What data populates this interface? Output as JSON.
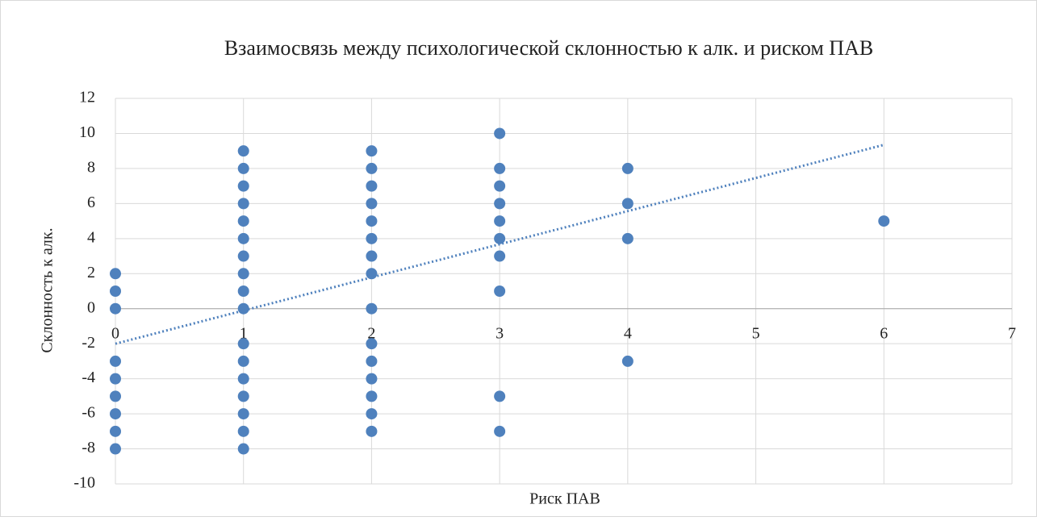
{
  "chart_data": {
    "type": "scatter",
    "title": "Взаимосвязь между психологической склонностью к алк. и риском ПАВ",
    "x_label": "Риск ПАВ",
    "y_label": "Склонность к алк.",
    "series": [
      {
        "name": "Склонность к алк.",
        "color": "#4f81bd",
        "x": [
          0,
          0,
          0,
          0,
          0,
          0,
          0,
          0,
          0,
          1,
          1,
          1,
          1,
          1,
          1,
          1,
          1,
          1,
          1,
          1,
          1,
          1,
          1,
          1,
          1,
          1,
          2,
          2,
          2,
          2,
          2,
          2,
          2,
          2,
          2,
          2,
          2,
          2,
          2,
          2,
          2,
          3,
          3,
          3,
          3,
          3,
          3,
          3,
          3,
          3,
          3,
          4,
          4,
          4,
          4,
          6
        ],
        "values": [
          2,
          1,
          0,
          -3,
          -4,
          -5,
          -6,
          -7,
          -8,
          9,
          8,
          7,
          6,
          5,
          4,
          3,
          2,
          1,
          0,
          -2,
          -3,
          -4,
          -5,
          -6,
          -7,
          -8,
          9,
          8,
          7,
          6,
          5,
          4,
          3,
          2,
          0,
          -2,
          -3,
          -4,
          -5,
          -6,
          -7,
          10,
          8,
          7,
          6,
          5,
          4,
          3,
          1,
          -5,
          -7,
          8,
          6,
          4,
          -3,
          5
        ]
      }
    ],
    "trendline": {
      "color": "#4f81bd",
      "x": [
        0,
        6
      ],
      "values": [
        -2,
        9.35
      ]
    },
    "xlim": [
      0,
      7
    ],
    "xticks": [
      0,
      1,
      2,
      3,
      4,
      5,
      6,
      7
    ],
    "ylim": [
      -10,
      12
    ],
    "yticks": [
      -10,
      -8,
      -6,
      -4,
      -2,
      0,
      2,
      4,
      6,
      8,
      10,
      12
    ],
    "grid": true
  }
}
